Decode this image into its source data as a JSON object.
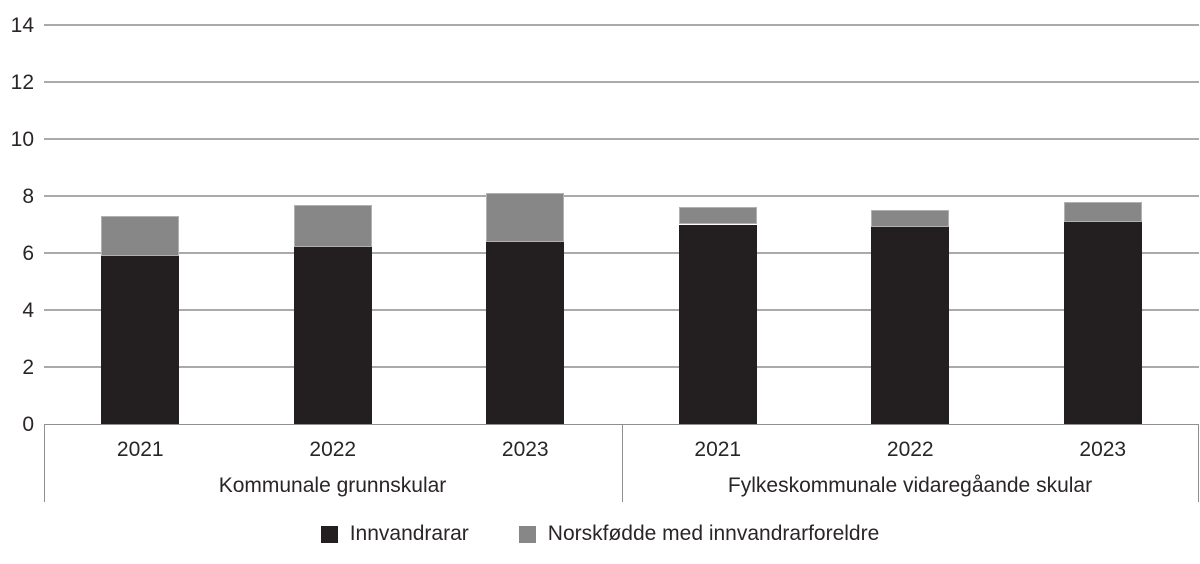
{
  "colors": {
    "background": "#ffffff",
    "gridline": "#aaaaaa",
    "axis": "#8f8f8f",
    "text": "#2a2627"
  },
  "chart_data": {
    "type": "bar",
    "stacked": true,
    "title": "",
    "xlabel": "",
    "ylabel": "",
    "ylim": [
      0,
      14
    ],
    "yticks": [
      0,
      2,
      4,
      6,
      8,
      10,
      12,
      14
    ],
    "grid": true,
    "legend_position": "bottom",
    "groups": [
      {
        "label": "Kommunale grunnskular",
        "categories": [
          "2021",
          "2022",
          "2023"
        ]
      },
      {
        "label": "Fylkeskommunale vidaregåande skular",
        "categories": [
          "2021",
          "2022",
          "2023"
        ]
      }
    ],
    "series": [
      {
        "name": "Innvandrarar",
        "color": "#231f20",
        "values": [
          [
            5.9,
            6.2,
            6.4
          ],
          [
            7.0,
            6.9,
            7.1
          ]
        ]
      },
      {
        "name": "Norskfødde med innvandrarforeldre",
        "color": "#878787",
        "values": [
          [
            1.4,
            1.5,
            1.7
          ],
          [
            0.6,
            0.6,
            0.7
          ]
        ]
      }
    ]
  }
}
